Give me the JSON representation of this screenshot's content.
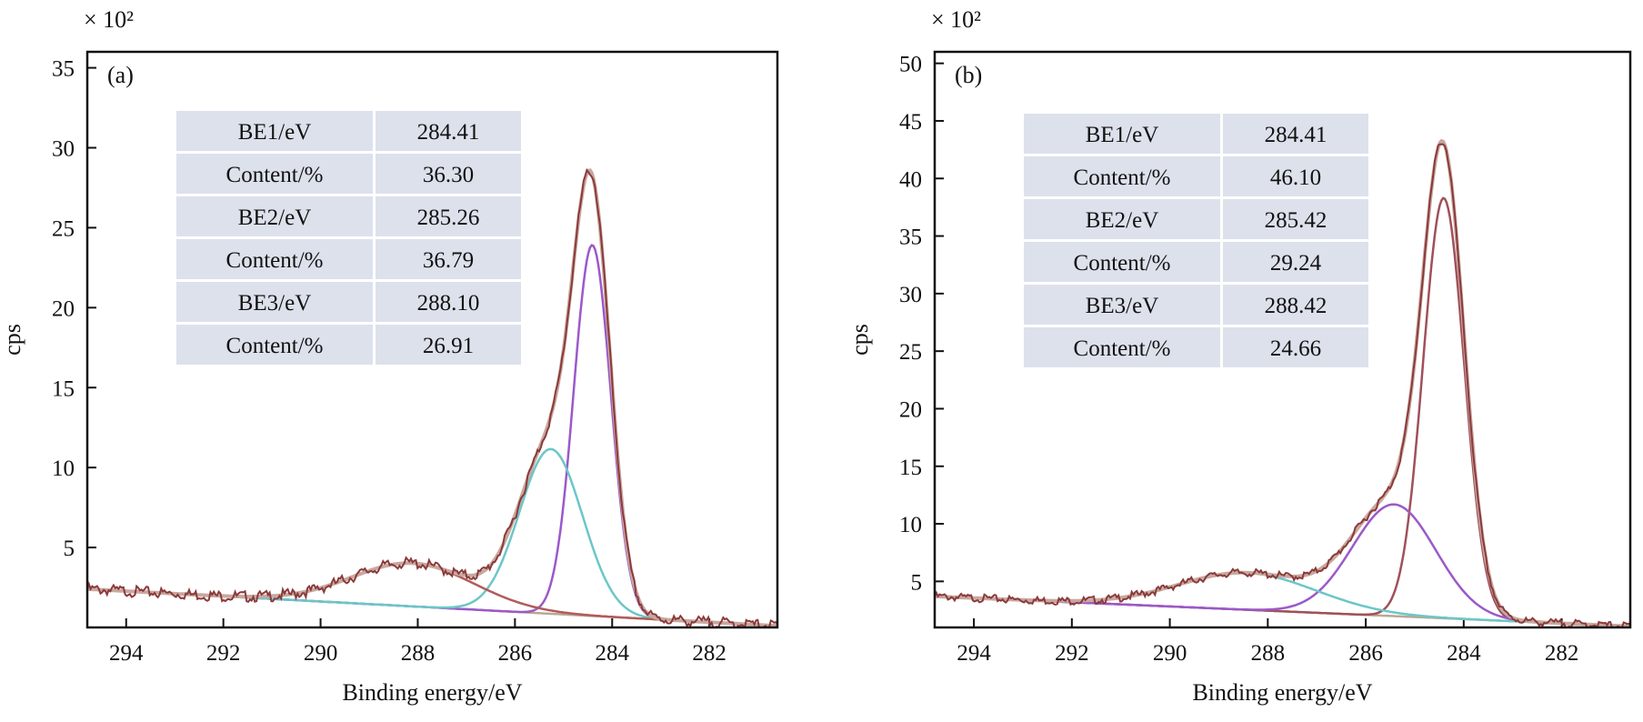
{
  "chart_data": [
    {
      "type": "line",
      "panel_label": "(a)",
      "multiplier": "× 10²",
      "xlabel": "Binding energy/eV",
      "ylabel": "cps",
      "xlim": [
        294.8,
        280.6
      ],
      "ylim": [
        0,
        36
      ],
      "xticks": [
        294,
        292,
        290,
        288,
        286,
        284,
        282
      ],
      "yticks": [
        5,
        10,
        15,
        20,
        25,
        30,
        35
      ],
      "table": [
        [
          "BE1/eV",
          "284.41"
        ],
        [
          "Content/%",
          "36.30"
        ],
        [
          "BE2/eV",
          "285.26"
        ],
        [
          "Content/%",
          "36.79"
        ],
        [
          "BE3/eV",
          "288.10"
        ],
        [
          "Content/%",
          "26.91"
        ]
      ],
      "colors": {
        "total": "#8b3a3a",
        "fit": "#c8a8a0",
        "peak1": "#9b59c9",
        "peak2": "#6cc6c8",
        "peak3": "#b35a5a",
        "background": "#b8a894",
        "table_fill": "#dde1ec"
      },
      "baseline": {
        "start": 2.4,
        "end": 0.1
      },
      "series": [
        {
          "name": "peak1",
          "center": 284.41,
          "amplitude": 23.2,
          "sigma": 0.38,
          "color_key": "peak1"
        },
        {
          "name": "peak2",
          "center": 285.26,
          "amplitude": 10.3,
          "sigma": 0.65,
          "color_key": "peak2"
        },
        {
          "name": "peak3",
          "center": 288.1,
          "amplitude": 2.7,
          "sigma": 1.25,
          "color_key": "peak3"
        }
      ]
    },
    {
      "type": "line",
      "panel_label": "(b)",
      "multiplier": "× 10²",
      "xlabel": "Binding energy/eV",
      "ylabel": "cps",
      "xlim": [
        294.8,
        280.6
      ],
      "ylim": [
        1,
        51
      ],
      "xticks": [
        294,
        292,
        290,
        288,
        286,
        284,
        282
      ],
      "yticks": [
        5,
        10,
        15,
        20,
        25,
        30,
        35,
        40,
        45,
        50
      ],
      "table": [
        [
          "BE1/eV",
          "284.41"
        ],
        [
          "Content/%",
          "46.10"
        ],
        [
          "BE2/eV",
          "285.42"
        ],
        [
          "Content/%",
          "29.24"
        ],
        [
          "BE3/eV",
          "288.42"
        ],
        [
          "Content/%",
          "24.66"
        ]
      ],
      "colors": {
        "total": "#8b3a3a",
        "fit": "#c8a8a0",
        "peak1": "#a0505a",
        "peak2": "#9b59c9",
        "peak3": "#6cc6c8",
        "background": "#b8a894",
        "table_fill": "#dde1ec"
      },
      "baseline": {
        "start": 3.7,
        "end": 1.1
      },
      "series": [
        {
          "name": "peak1",
          "center": 284.41,
          "amplitude": 36.5,
          "sigma": 0.42,
          "color_key": "peak1"
        },
        {
          "name": "peak2",
          "center": 285.42,
          "amplitude": 9.7,
          "sigma": 0.85,
          "color_key": "peak2"
        },
        {
          "name": "peak3",
          "center": 288.42,
          "amplitude": 3.2,
          "sigma": 1.4,
          "color_key": "peak3"
        }
      ]
    }
  ]
}
